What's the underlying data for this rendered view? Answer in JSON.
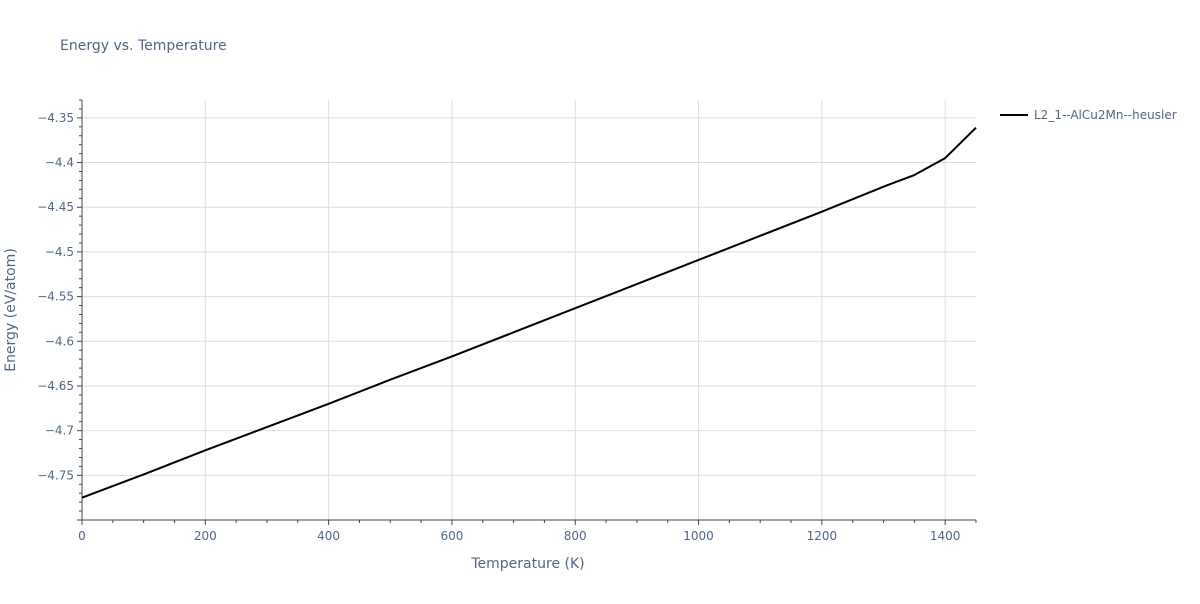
{
  "chart_data": {
    "type": "line",
    "title": "Energy vs. Temperature",
    "xlabel": "Temperature (K)",
    "ylabel": "Energy (eV/atom)",
    "xlim": [
      0,
      1450
    ],
    "ylim": [
      -4.8,
      -4.33
    ],
    "x_ticks": [
      0,
      200,
      400,
      600,
      800,
      1000,
      1200,
      1400
    ],
    "x_tick_labels": [
      "0",
      "200",
      "400",
      "600",
      "800",
      "1000",
      "1200",
      "1400"
    ],
    "y_ticks": [
      -4.75,
      -4.7,
      -4.65,
      -4.6,
      -4.55,
      -4.5,
      -4.45,
      -4.4,
      -4.35
    ],
    "y_tick_labels": [
      "−4.75",
      "−4.7",
      "−4.65",
      "−4.6",
      "−4.55",
      "−4.5",
      "−4.45",
      "−4.4",
      "−4.35"
    ],
    "grid": true,
    "legend_position": "top-right",
    "series": [
      {
        "name": "L2_1--AlCu2Mn--heusler",
        "color": "#000000",
        "x": [
          0,
          100,
          200,
          300,
          400,
          500,
          600,
          700,
          800,
          900,
          1000,
          1100,
          1200,
          1300,
          1350,
          1400,
          1450
        ],
        "y": [
          -4.775,
          -4.749,
          -4.722,
          -4.696,
          -4.67,
          -4.643,
          -4.617,
          -4.59,
          -4.563,
          -4.536,
          -4.509,
          -4.482,
          -4.455,
          -4.427,
          -4.414,
          -4.395,
          -4.361
        ]
      }
    ]
  },
  "colors": {
    "text": "#506784",
    "grid": "#dddddd",
    "axis_line": "#444444"
  }
}
